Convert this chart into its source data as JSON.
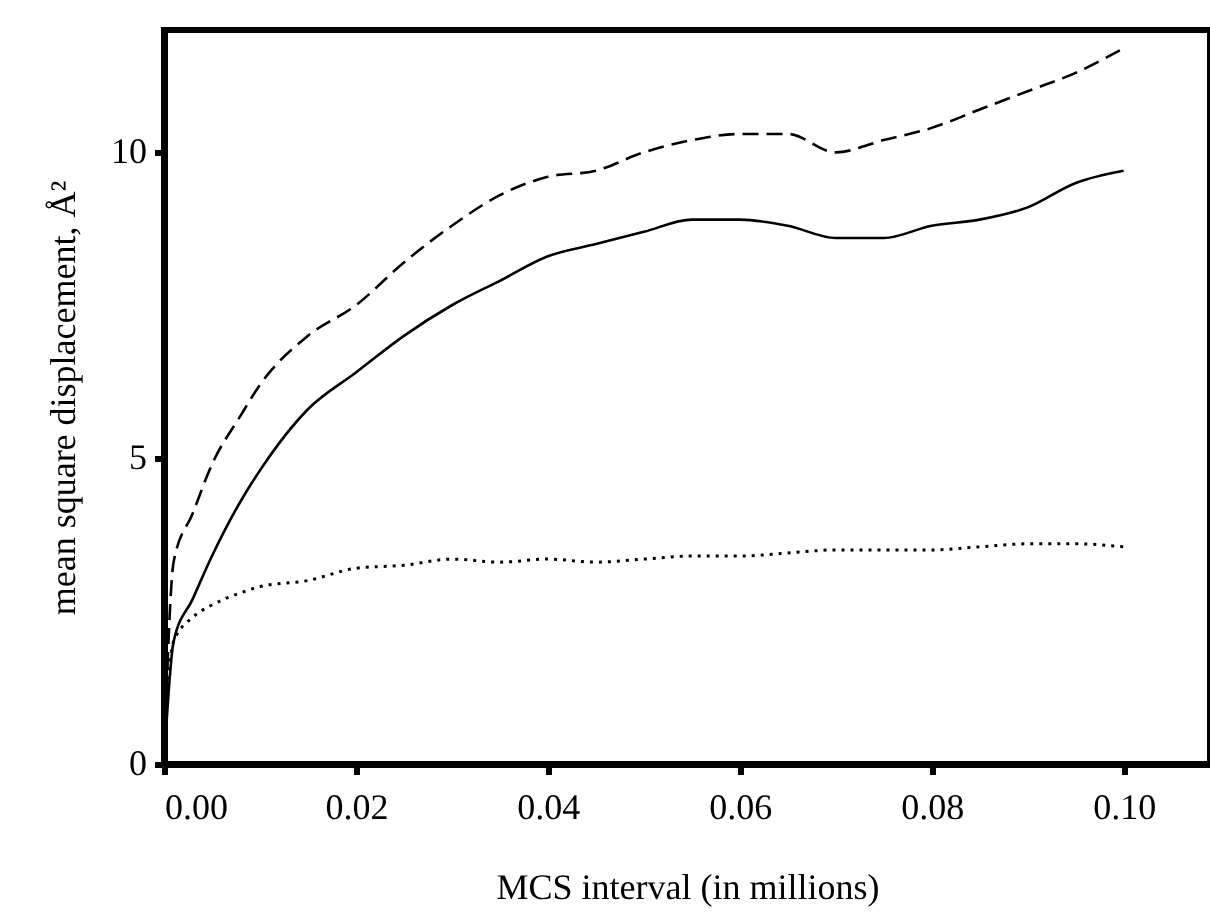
{
  "chart_data": {
    "type": "line",
    "xlabel": "MCS interval (in millions)",
    "ylabel": "mean square displacement, Å²",
    "xlim": [
      0,
      0.109
    ],
    "xticks": [
      {
        "value": 0,
        "label": "0.00"
      },
      {
        "value": 0.02,
        "label": "0.02"
      },
      {
        "value": 0.04,
        "label": "0.04"
      },
      {
        "value": 0.06,
        "label": "0.06"
      },
      {
        "value": 0.08,
        "label": "0.08"
      },
      {
        "value": 0.1,
        "label": "0.10"
      }
    ],
    "ylim": [
      0,
      12
    ],
    "yticks": [
      0,
      5,
      10
    ],
    "x": [
      0,
      0.001,
      0.003,
      0.005,
      0.008,
      0.01,
      0.015,
      0.02,
      0.025,
      0.03,
      0.035,
      0.04,
      0.045,
      0.05,
      0.055,
      0.06,
      0.065,
      0.07,
      0.075,
      0.08,
      0.085,
      0.09,
      0.095,
      0.1
    ],
    "series": [
      {
        "color": "#000000",
        "line_style": "dashed",
        "values": [
          0,
          3.3,
          4.1,
          4.9,
          5.7,
          6.2,
          7.0,
          7.5,
          8.2,
          8.8,
          9.3,
          9.6,
          9.7,
          10.0,
          10.2,
          10.3,
          10.3,
          10.0,
          10.2,
          10.4,
          10.7,
          11.0,
          11.3,
          11.7
        ]
      },
      {
        "color": "#000000",
        "line_style": "solid",
        "values": [
          0,
          2.0,
          2.7,
          3.4,
          4.3,
          4.8,
          5.8,
          6.4,
          7.0,
          7.5,
          7.9,
          8.3,
          8.5,
          8.7,
          8.9,
          8.9,
          8.8,
          8.6,
          8.6,
          8.8,
          8.9,
          9.1,
          9.5,
          9.7
        ]
      },
      {
        "color": "#000000",
        "line_style": "dotted",
        "values": [
          0.5,
          2.0,
          2.4,
          2.6,
          2.8,
          2.9,
          3.0,
          3.2,
          3.25,
          3.35,
          3.3,
          3.35,
          3.3,
          3.35,
          3.4,
          3.4,
          3.45,
          3.5,
          3.5,
          3.5,
          3.55,
          3.6,
          3.6,
          3.55
        ]
      }
    ]
  }
}
